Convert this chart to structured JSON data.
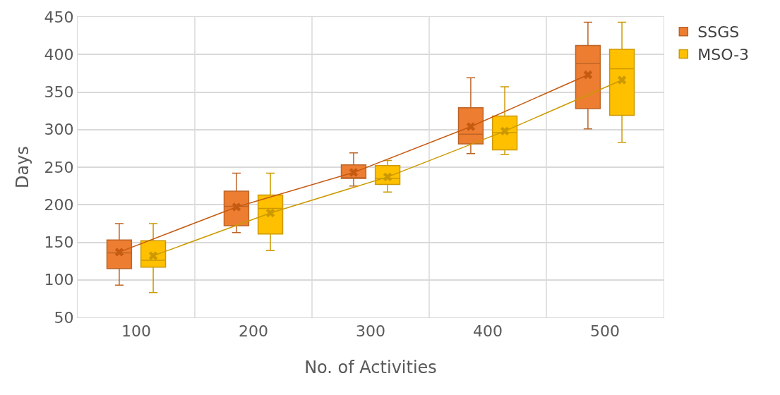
{
  "chart_data": {
    "type": "box",
    "xlabel": "No. of Activities",
    "ylabel": "Days",
    "categories": [
      "100",
      "200",
      "300",
      "400",
      "500"
    ],
    "ylim": [
      50,
      450
    ],
    "yticks": [
      50,
      100,
      150,
      200,
      250,
      300,
      350,
      400,
      450
    ],
    "grid": true,
    "legend": "top right",
    "marker": "cross",
    "series": [
      {
        "name": "SSGS",
        "color": "#ed7d31",
        "boxes": [
          {
            "low": 93,
            "q1": 115,
            "median": 136,
            "q3": 153,
            "high": 175
          },
          {
            "low": 163,
            "q1": 172,
            "median": 198,
            "q3": 218,
            "high": 242
          },
          {
            "low": 225,
            "q1": 235,
            "median": 236,
            "q3": 253,
            "high": 269
          },
          {
            "low": 268,
            "q1": 281,
            "median": 294,
            "q3": 329,
            "high": 369
          },
          {
            "low": 301,
            "q1": 328,
            "median": 388,
            "q3": 412,
            "high": 443
          }
        ]
      },
      {
        "name": "MSO-3",
        "color": "#ffc000",
        "boxes": [
          {
            "low": 83,
            "q1": 117,
            "median": 126,
            "q3": 152,
            "high": 175
          },
          {
            "low": 139,
            "q1": 161,
            "median": 195,
            "q3": 213,
            "high": 242
          },
          {
            "low": 217,
            "q1": 227,
            "median": 235,
            "q3": 252,
            "high": 259
          },
          {
            "low": 267,
            "q1": 273,
            "median": 296,
            "q3": 318,
            "high": 357
          },
          {
            "low": 283,
            "q1": 319,
            "median": 381,
            "q3": 407,
            "high": 443
          }
        ]
      },
      {
        "type": "line",
        "color": "#c55a11",
        "values": [
          137,
          197,
          243,
          304,
          373
        ]
      },
      {
        "type": "line",
        "color": "#cc9900",
        "values": [
          132,
          189,
          237,
          298,
          366
        ]
      }
    ]
  }
}
